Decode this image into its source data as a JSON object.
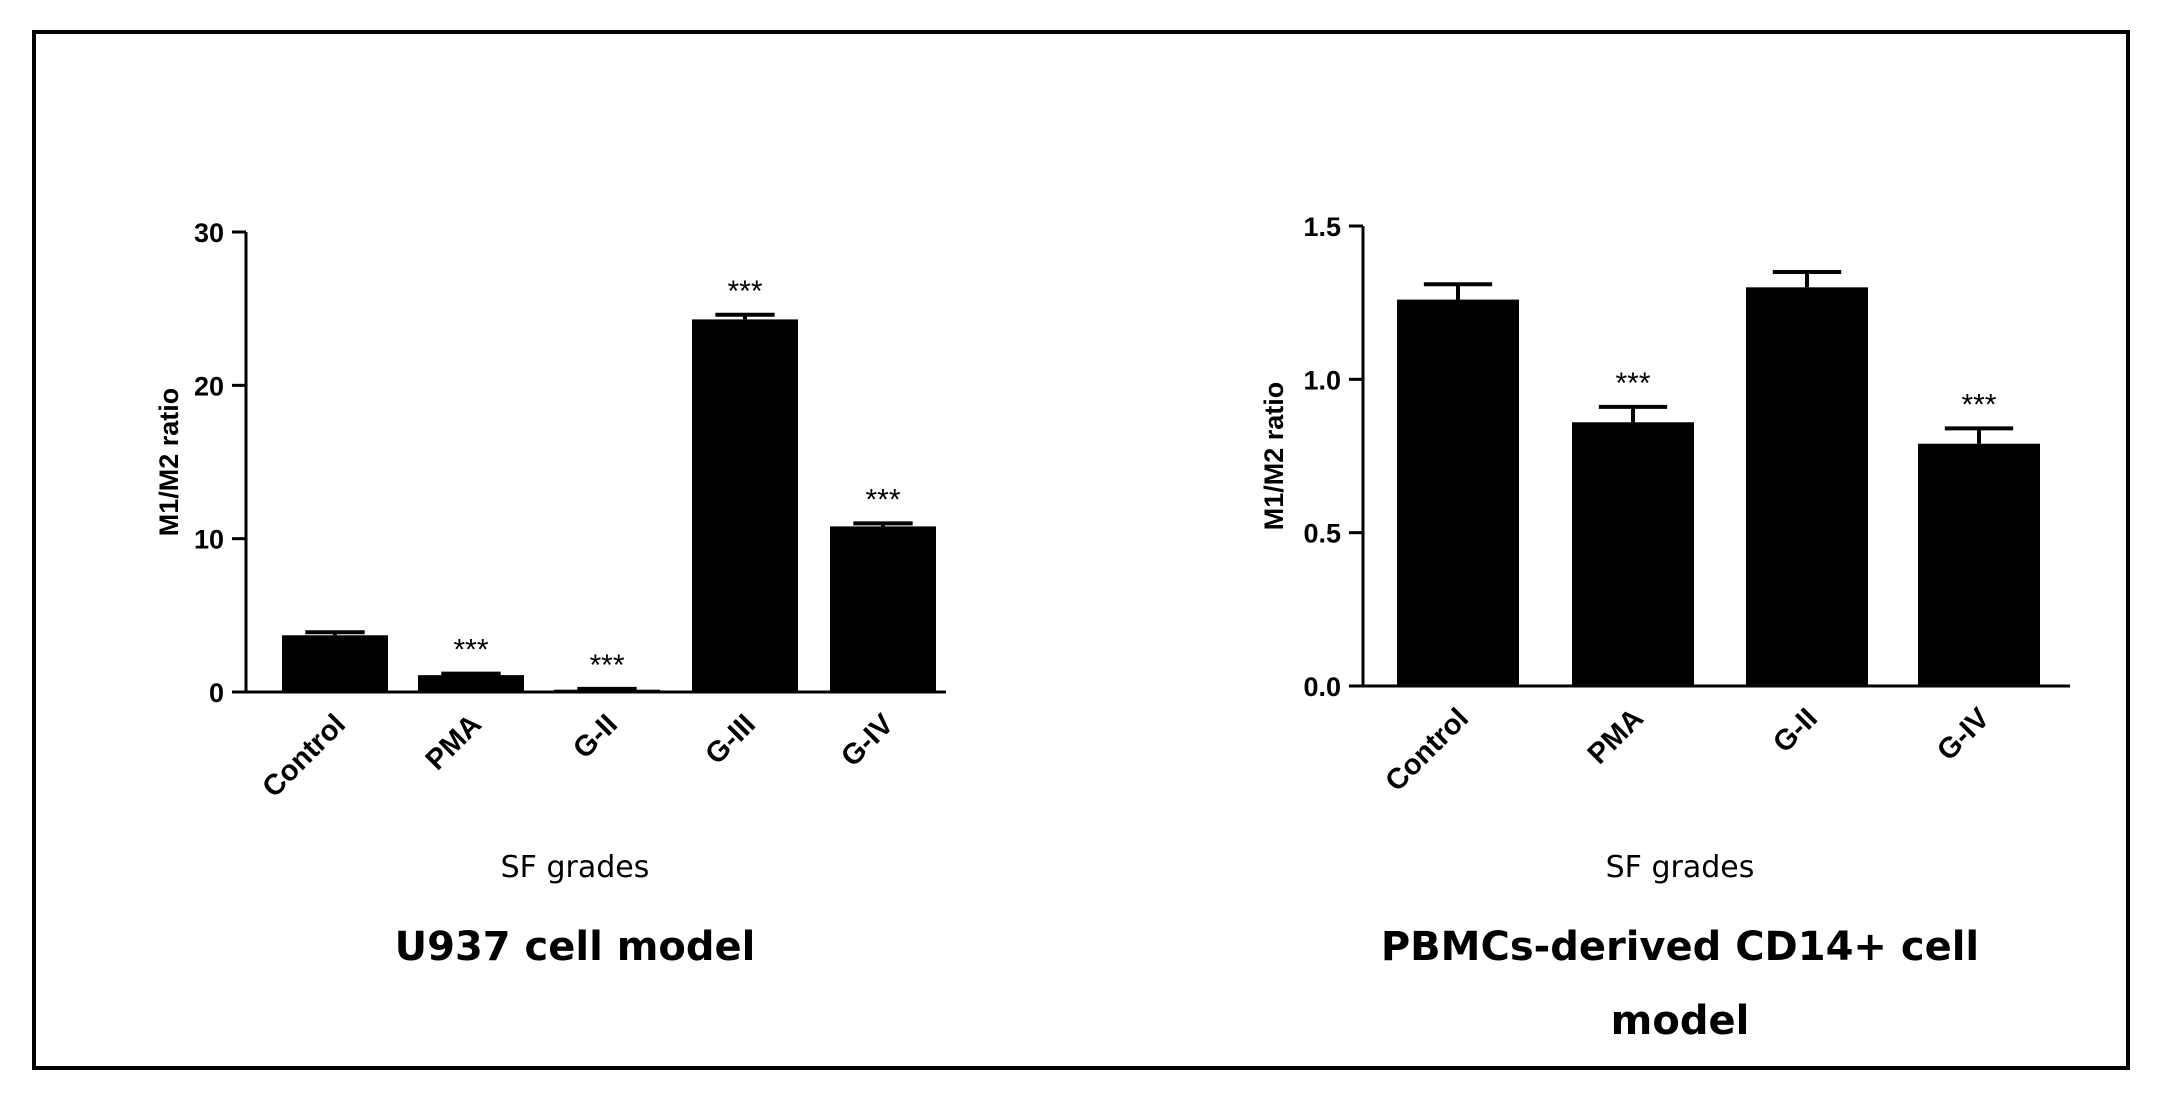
{
  "chart_data": [
    {
      "type": "bar",
      "title": "U937 cell model",
      "title_lines": [
        "U937 cell model"
      ],
      "xlabel": "SF grades",
      "ylabel": "M1/M2 ratio",
      "categories": [
        "Control",
        "PMA",
        "G-II",
        "G-III",
        "G-IV"
      ],
      "values": [
        3.7,
        1.1,
        0.15,
        24.3,
        10.8
      ],
      "errors": [
        0.2,
        0.1,
        0.05,
        0.3,
        0.2
      ],
      "significance": [
        "",
        "***",
        "***",
        "***",
        "***"
      ],
      "yticks": [
        "0",
        "10",
        "20",
        "30"
      ],
      "ylim": [
        0,
        30
      ],
      "bar_color": "#000000"
    },
    {
      "type": "bar",
      "title": "PBMCs-derived CD14+ cell model",
      "title_lines": [
        "PBMCs-derived CD14+ cell",
        "model"
      ],
      "xlabel": "SF grades",
      "ylabel": "M1/M2 ratio",
      "categories": [
        "Control",
        "PMA",
        "G-II",
        "G-IV"
      ],
      "values": [
        1.26,
        0.86,
        1.3,
        0.79
      ],
      "errors": [
        0.05,
        0.05,
        0.05,
        0.05
      ],
      "significance": [
        "",
        "***",
        "",
        "***"
      ],
      "yticks": [
        "0.0",
        "0.5",
        "1.0",
        "1.5"
      ],
      "ylim": [
        0,
        1.5
      ],
      "bar_color": "#000000"
    }
  ]
}
